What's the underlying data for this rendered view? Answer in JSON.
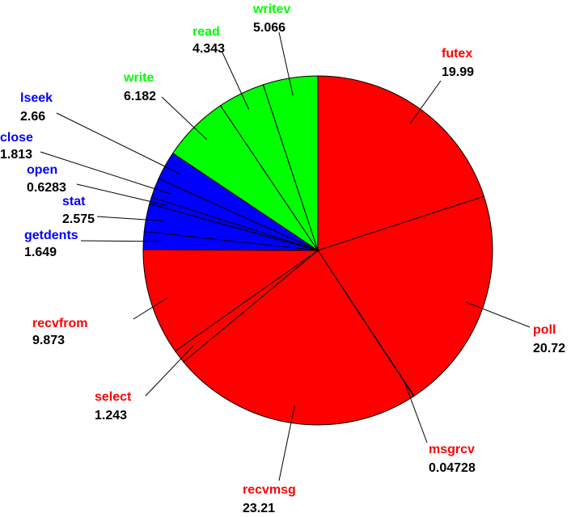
{
  "chart_data": {
    "type": "pie",
    "categories": [
      "futex",
      "poll",
      "msgrcv",
      "recvmsg",
      "select",
      "recvfrom",
      "getdents",
      "stat",
      "open",
      "close",
      "lseek",
      "write",
      "read",
      "writev"
    ],
    "values": [
      19.99,
      20.72,
      0.04728,
      23.21,
      1.243,
      9.873,
      1.649,
      2.575,
      0.6283,
      1.813,
      2.66,
      6.182,
      4.343,
      5.066
    ],
    "colors": [
      "#ff0000",
      "#ff0000",
      "#ff0000",
      "#ff0000",
      "#ff0000",
      "#ff0000",
      "#0000ff",
      "#0000ff",
      "#0000ff",
      "#0000ff",
      "#0000ff",
      "#00ff00",
      "#00ff00",
      "#00ff00"
    ]
  }
}
